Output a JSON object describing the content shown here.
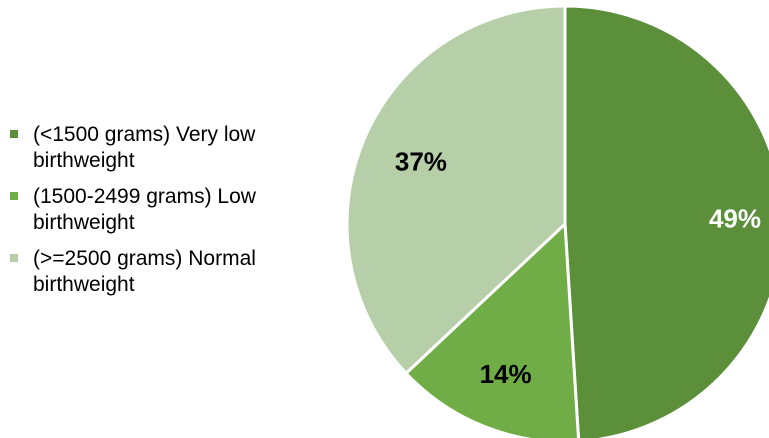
{
  "chart_data": {
    "type": "pie",
    "title": "",
    "categories": [
      "(<1500 grams) Very low birthweight",
      "(1500-2499 grams) Low birthweight",
      "(>=2500 grams) Normal birthweight"
    ],
    "values": [
      49,
      14,
      37
    ],
    "data_labels": [
      "49%",
      "14%",
      "37%"
    ],
    "colors": [
      "#5b8f3a",
      "#70ad47",
      "#b6cfa8"
    ],
    "label_colors": [
      "#ffffff",
      "#000000",
      "#000000"
    ],
    "start_angle_deg": 0,
    "direction": "clockwise",
    "legend_position": "left"
  }
}
